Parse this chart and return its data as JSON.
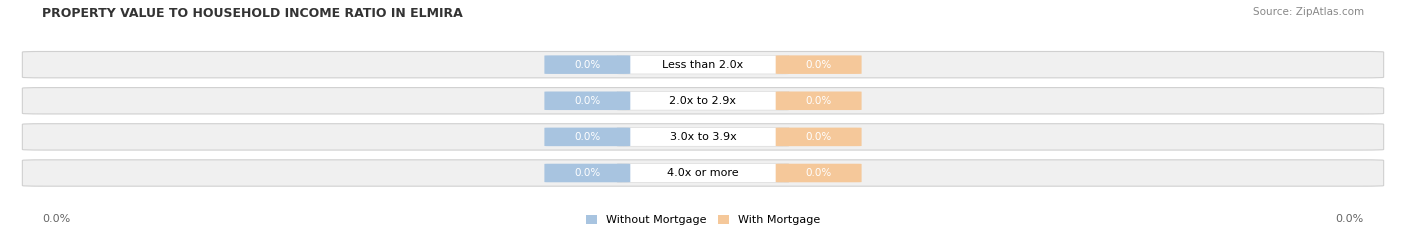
{
  "title": "PROPERTY VALUE TO HOUSEHOLD INCOME RATIO IN ELMIRA",
  "source": "Source: ZipAtlas.com",
  "categories": [
    "Less than 2.0x",
    "2.0x to 2.9x",
    "3.0x to 3.9x",
    "4.0x or more"
  ],
  "without_mortgage": [
    0.0,
    0.0,
    0.0,
    0.0
  ],
  "with_mortgage": [
    0.0,
    0.0,
    0.0,
    0.0
  ],
  "without_mortgage_color": "#a8c4e0",
  "with_mortgage_color": "#f5c89a",
  "bar_bg_color": "#f0f0f0",
  "bar_bg_edge_color": "#d0d0d0",
  "axis_label_left": "0.0%",
  "axis_label_right": "0.0%",
  "legend_without": "Without Mortgage",
  "legend_with": "With Mortgage",
  "fig_width": 14.06,
  "fig_height": 2.33,
  "title_fontsize": 9,
  "source_fontsize": 7.5,
  "badge_label_fontsize": 7.5,
  "category_fontsize": 8,
  "axis_tick_fontsize": 8,
  "legend_fontsize": 8
}
